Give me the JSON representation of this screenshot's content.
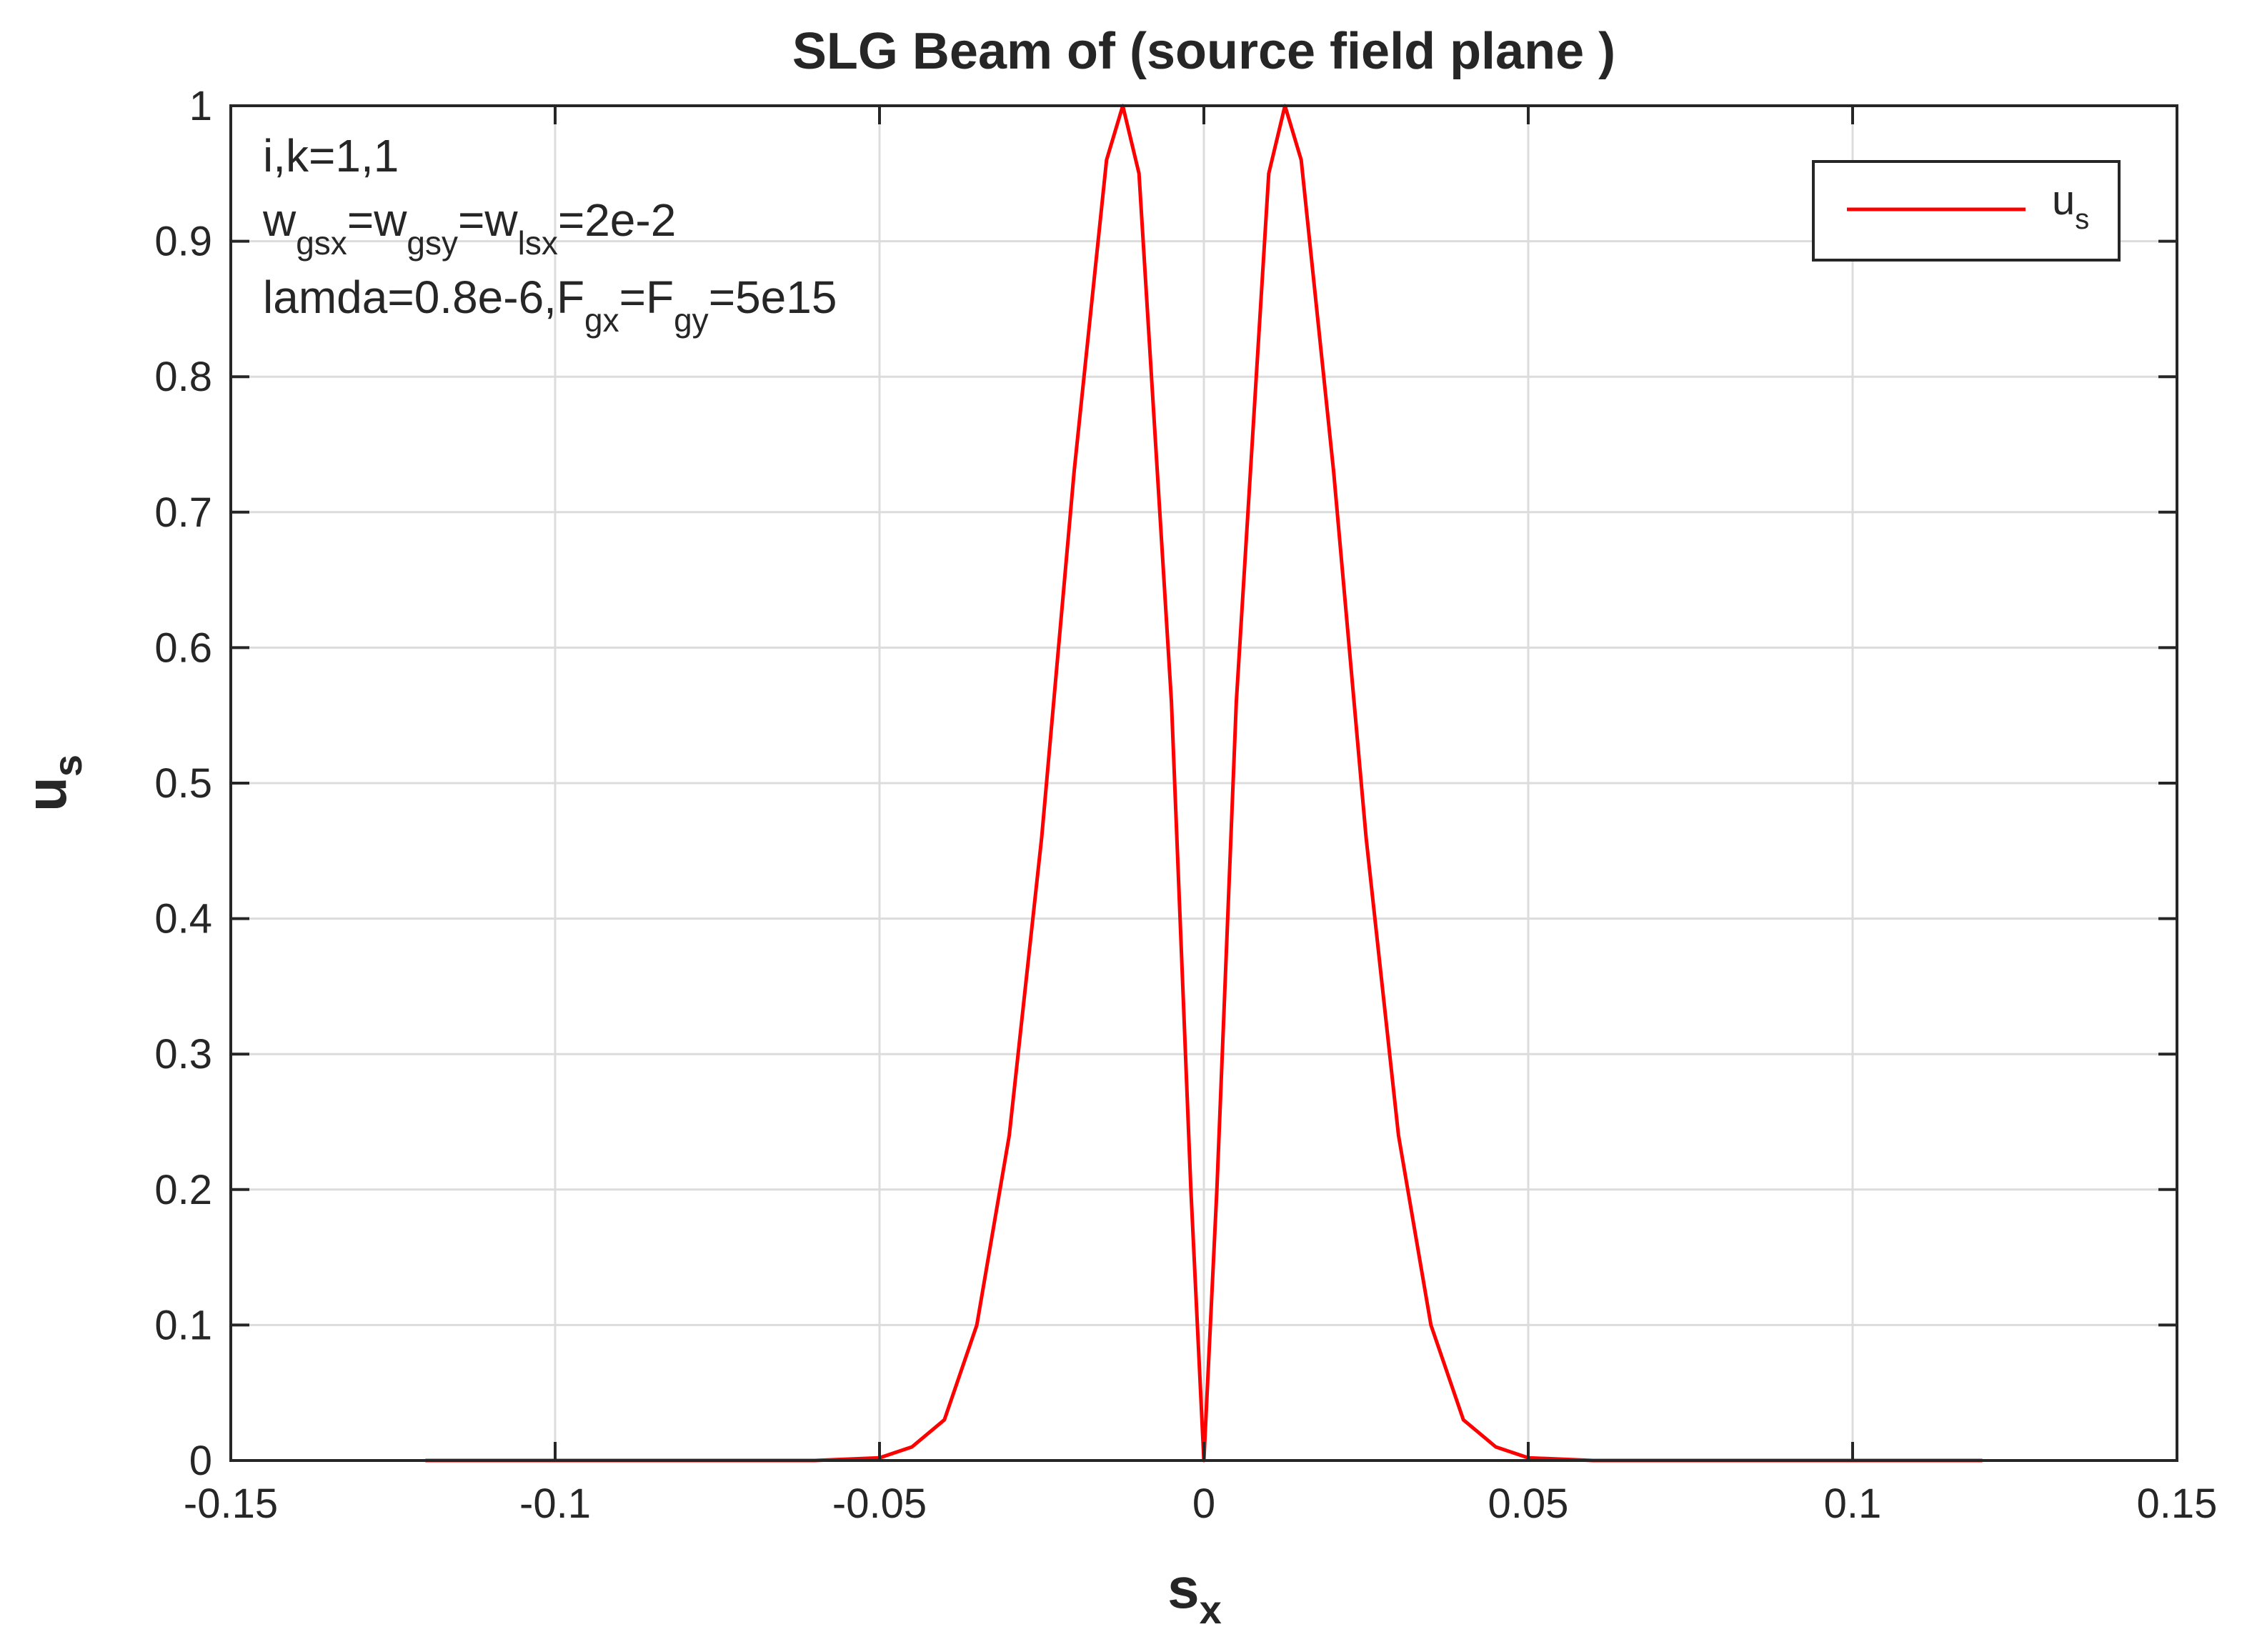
{
  "chart_data": {
    "type": "line",
    "title": "SLG Beam of (source field plane )",
    "xlabel": {
      "main": "s",
      "sub": "x"
    },
    "ylabel": {
      "main": "u",
      "sub": "s"
    },
    "xlim": [
      -0.15,
      0.15
    ],
    "ylim": [
      0,
      1
    ],
    "xticks": [
      -0.15,
      -0.1,
      -0.05,
      0,
      0.05,
      0.1,
      0.15
    ],
    "xtick_labels": [
      "-0.15",
      "-0.1",
      "-0.05",
      "0",
      "0.05",
      "0.1",
      "0.15"
    ],
    "yticks": [
      0,
      0.1,
      0.2,
      0.3,
      0.4,
      0.5,
      0.6,
      0.7,
      0.8,
      0.9,
      1
    ],
    "ytick_labels": [
      "0",
      "0.1",
      "0.2",
      "0.3",
      "0.4",
      "0.5",
      "0.6",
      "0.7",
      "0.8",
      "0.9",
      "1"
    ],
    "grid": true,
    "legend_position": "top-right",
    "series": [
      {
        "name": {
          "main": "u",
          "sub": "s"
        },
        "color": "#ff0000",
        "x": [
          -0.12,
          -0.06,
          -0.05,
          -0.045,
          -0.04,
          -0.035,
          -0.03,
          -0.025,
          -0.02,
          -0.015,
          -0.0125,
          -0.01,
          -0.005,
          -0.002,
          0,
          0.002,
          0.005,
          0.01,
          0.0125,
          0.015,
          0.02,
          0.025,
          0.03,
          0.035,
          0.04,
          0.045,
          0.05,
          0.06,
          0.12
        ],
        "y": [
          0,
          0,
          0.002,
          0.01,
          0.03,
          0.1,
          0.24,
          0.46,
          0.73,
          0.96,
          1,
          0.95,
          0.56,
          0.2,
          0,
          0.2,
          0.56,
          0.95,
          1,
          0.96,
          0.73,
          0.46,
          0.24,
          0.1,
          0.03,
          0.01,
          0.002,
          0,
          0
        ]
      }
    ],
    "annotations": [
      [
        {
          "t": "i,k=1,1"
        }
      ],
      [
        {
          "t": "w"
        },
        {
          "t": "gsx",
          "sub": true
        },
        {
          "t": "=w"
        },
        {
          "t": "gsy",
          "sub": true
        },
        {
          "t": "=w"
        },
        {
          "t": "lsx",
          "sub": true
        },
        {
          "t": "=2e-2"
        }
      ],
      [
        {
          "t": "lamda=0.8e-6,F"
        },
        {
          "t": "gx",
          "sub": true
        },
        {
          "t": "=F"
        },
        {
          "t": "gy",
          "sub": true
        },
        {
          "t": "=5e15"
        }
      ]
    ]
  }
}
